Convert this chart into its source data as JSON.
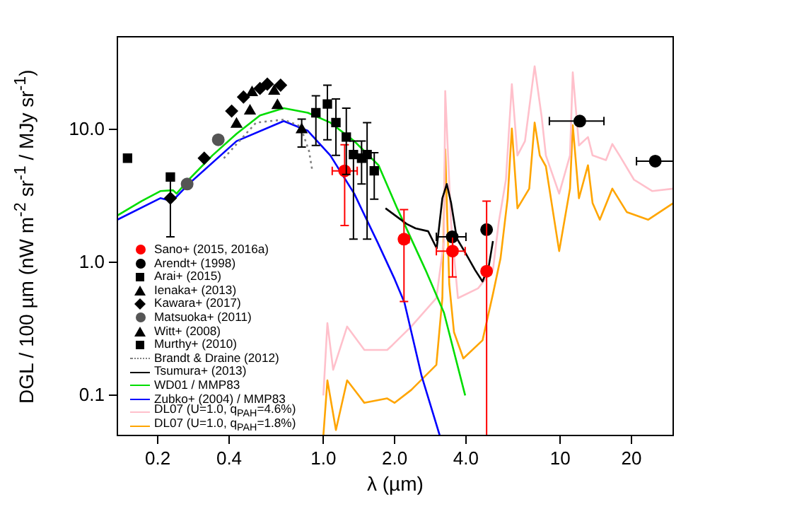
{
  "chart_data": {
    "type": "scatter",
    "xlabel": "λ (µm)",
    "ylabel": "DGL / 100 µm (nW m$^{-2}$ sr$^{-1}$ / MJy sr$^{-1}$)",
    "xlim": [
      0.135,
      30
    ],
    "ylim": [
      0.05,
      50
    ],
    "log": "xy",
    "grid": false,
    "legend": "bottom left",
    "xticks": [
      0.2,
      0.4,
      {
        "value": 1,
        "label": "1.0"
      },
      {
        "value": 2,
        "label": "2.0"
      },
      {
        "value": 4,
        "label": "4.0"
      },
      10,
      20
    ],
    "yticks": [
      0.1,
      {
        "value": 1,
        "label": "1.0"
      },
      {
        "value": 10,
        "label": "10.0"
      }
    ],
    "series": [
      {
        "name": "Sano+ (2015, 2016a)",
        "type": "scatter",
        "marker": "circle",
        "color": "#ff0000",
        "x": [
          1.23,
          2.19,
          3.51,
          4.89
        ],
        "values": [
          4.9,
          1.5,
          1.22,
          0.86
        ],
        "errors": [
          [
            1.9,
            7.7
          ],
          [
            0.51,
            2.5
          ],
          [
            0.78,
            1.56
          ],
          [
            0.05,
            2.9
          ]
        ],
        "xerrors": [
          [
            1.09,
            1.39
          ],
          [
            2.1,
            2.3
          ],
          [
            3.0,
            3.97
          ],
          [
            4.7,
            5.1
          ]
        ]
      },
      {
        "name": "Arendt+ (1998)",
        "type": "scatter",
        "marker": "circle",
        "color": "#000000",
        "x": [
          3.5,
          4.89,
          12.1,
          25.2
        ],
        "values": [
          1.56,
          1.77,
          11.6,
          5.8
        ],
        "xerrors": [
          [
            3.0,
            4.0
          ],
          null,
          [
            9.0,
            15.3
          ],
          [
            21,
            30
          ]
        ]
      },
      {
        "name": "Arai+ (2015)",
        "type": "scatter",
        "marker": "square",
        "color": "#000000",
        "x": [
          0.93,
          1.04,
          1.13,
          1.25,
          1.34,
          1.45,
          1.53,
          1.64
        ],
        "values": [
          13.4,
          15.6,
          11.3,
          8.8,
          6.5,
          6.1,
          6.5,
          4.9
        ],
        "errors": [
          [
            7.6,
            18
          ],
          [
            8.4,
            21.6
          ],
          [
            6.4,
            17
          ],
          [
            4.6,
            14.5
          ],
          [
            1.5,
            8.2
          ],
          [
            3.9,
            8.2
          ],
          [
            1.5,
            11.3
          ],
          [
            3.0,
            6.7
          ]
        ]
      },
      {
        "name": "Ienaka+ (2013)",
        "type": "scatter",
        "marker": "triangle",
        "color": "#000000",
        "x": [
          0.43,
          0.49,
          0.64
        ],
        "values": [
          11,
          13.8,
          15.2
        ]
      },
      {
        "name": "Kawara+ (2017)",
        "type": "scatter",
        "marker": "diamond",
        "color": "#000000",
        "x": [
          0.226,
          0.314,
          0.41,
          0.46,
          0.54,
          0.58,
          0.66
        ],
        "values": [
          3.05,
          6.1,
          13.8,
          17.6,
          20.4,
          22,
          21.6
        ],
        "errors": [
          [
            1.56,
            4.5
          ],
          null,
          null,
          null,
          null,
          null,
          null
        ]
      },
      {
        "name": "Matsuoka+ (2011)",
        "type": "scatter",
        "marker": "circle",
        "color": "#555555",
        "x": [
          0.266,
          0.36
        ],
        "values": [
          3.9,
          8.4
        ]
      },
      {
        "name": "Witt+ (2008)",
        "type": "scatter",
        "marker": "triangle",
        "color": "#000000",
        "x": [
          0.5,
          0.62,
          0.81
        ],
        "values": [
          19,
          19.5,
          10
        ],
        "errors": [
          null,
          null,
          [
            7.4,
            12
          ]
        ]
      },
      {
        "name": "Murthy+ (2010)",
        "type": "scatter",
        "marker": "square",
        "color": "#000000",
        "x": [
          0.149,
          0.226
        ],
        "values": [
          6.1,
          4.4
        ]
      },
      {
        "name": "Brandt & Draine (2012)",
        "type": "line",
        "line_style": "dotted",
        "color": "#808080",
        "x": [
          0.38,
          0.52,
          0.68,
          0.8,
          0.87,
          0.9
        ],
        "values": [
          6.1,
          11.3,
          11.9,
          10.6,
          6.9,
          4.8
        ]
      },
      {
        "name": "Tsumura+ (2013)",
        "type": "line",
        "line_style": "solid",
        "color": "#000000",
        "x": [
          1.83,
          2.25,
          2.45,
          2.77,
          3.01,
          3.18,
          3.32,
          3.46,
          3.66,
          3.97,
          4.37,
          4.7,
          5.0,
          5.2
        ],
        "values": [
          2.56,
          1.95,
          1.81,
          1.72,
          1.28,
          3.05,
          3.9,
          2.83,
          1.52,
          1.19,
          0.88,
          0.72,
          0.95,
          1.45
        ]
      },
      {
        "name": "WD01 / MMP83",
        "type": "line",
        "line_style": "solid",
        "color": "#00dd00",
        "x": [
          0.135,
          0.171,
          0.205,
          0.232,
          0.24,
          0.27,
          0.34,
          0.43,
          0.54,
          0.68,
          0.86,
          1.07,
          1.35,
          1.71,
          2.05,
          2.7,
          3.23,
          3.97
        ],
        "values": [
          2.26,
          2.9,
          3.45,
          3.5,
          3.3,
          4.2,
          6.4,
          9.3,
          12.8,
          14.5,
          13.4,
          11.3,
          8.2,
          5.4,
          2.56,
          0.88,
          0.42,
          0.1
        ]
      },
      {
        "name": "Zubko+ (2004) / MMP83",
        "type": "line",
        "line_style": "solid",
        "color": "#0000ff",
        "x": [
          0.135,
          0.205,
          0.23,
          0.27,
          0.43,
          0.68,
          0.86,
          1.07,
          1.35,
          1.7,
          2.0,
          2.2,
          2.6,
          3.1
        ],
        "values": [
          2.1,
          3.05,
          2.9,
          3.9,
          8.2,
          11.6,
          9.8,
          6.4,
          3.3,
          1.4,
          0.75,
          0.5,
          0.14,
          0.05
        ]
      },
      {
        "name": "DL07  (U=1.0, q$_{PAH}$=4.6%)",
        "type": "line",
        "line_style": "solid",
        "color": "#ffc0cb",
        "x": [
          1.0,
          1.04,
          1.1,
          1.26,
          1.49,
          1.86,
          1.96,
          2.35,
          3.0,
          3.23,
          3.27,
          3.46,
          3.7,
          4.5,
          5.2,
          5.5,
          5.9,
          6.25,
          6.6,
          7.1,
          7.8,
          8.35,
          8.7,
          9.9,
          11,
          11.3,
          12,
          13.1,
          13.7,
          15.6,
          16.6,
          17.8,
          20.5,
          24.5,
          30
        ],
        "values": [
          0.1,
          0.35,
          0.156,
          0.33,
          0.22,
          0.22,
          0.24,
          0.33,
          0.54,
          1.45,
          19.5,
          2.0,
          0.54,
          0.64,
          0.88,
          2.0,
          4.2,
          22,
          6.4,
          8.2,
          30,
          12.5,
          6.4,
          3.3,
          6.4,
          27,
          7.6,
          8.8,
          6.4,
          5.9,
          7.8,
          6.4,
          4.2,
          3.45,
          3.6
        ]
      },
      {
        "name": "DL07  (U=1.0, q$_{PAH}$=1.8%)",
        "type": "line",
        "line_style": "solid",
        "color": "#ffa500",
        "x": [
          1.0,
          1.04,
          1.13,
          1.26,
          1.49,
          1.86,
          2.0,
          2.35,
          3.0,
          3.18,
          3.27,
          3.4,
          3.56,
          3.9,
          4.7,
          5.2,
          5.6,
          6.0,
          6.25,
          6.6,
          7.4,
          7.8,
          8.2,
          8.7,
          9.9,
          11,
          11.3,
          12,
          13.1,
          13.7,
          14.7,
          16.6,
          19.1,
          23.5,
          30
        ],
        "values": [
          0.05,
          0.13,
          0.055,
          0.13,
          0.088,
          0.095,
          0.088,
          0.11,
          0.17,
          0.54,
          7.1,
          0.69,
          0.3,
          0.19,
          0.26,
          0.58,
          1.08,
          3.05,
          10.2,
          2.56,
          3.6,
          11.3,
          6.4,
          5.3,
          1.22,
          3.6,
          10.8,
          3.05,
          5.4,
          2.8,
          2.1,
          3.6,
          2.4,
          2.1,
          2.8
        ]
      }
    ]
  }
}
